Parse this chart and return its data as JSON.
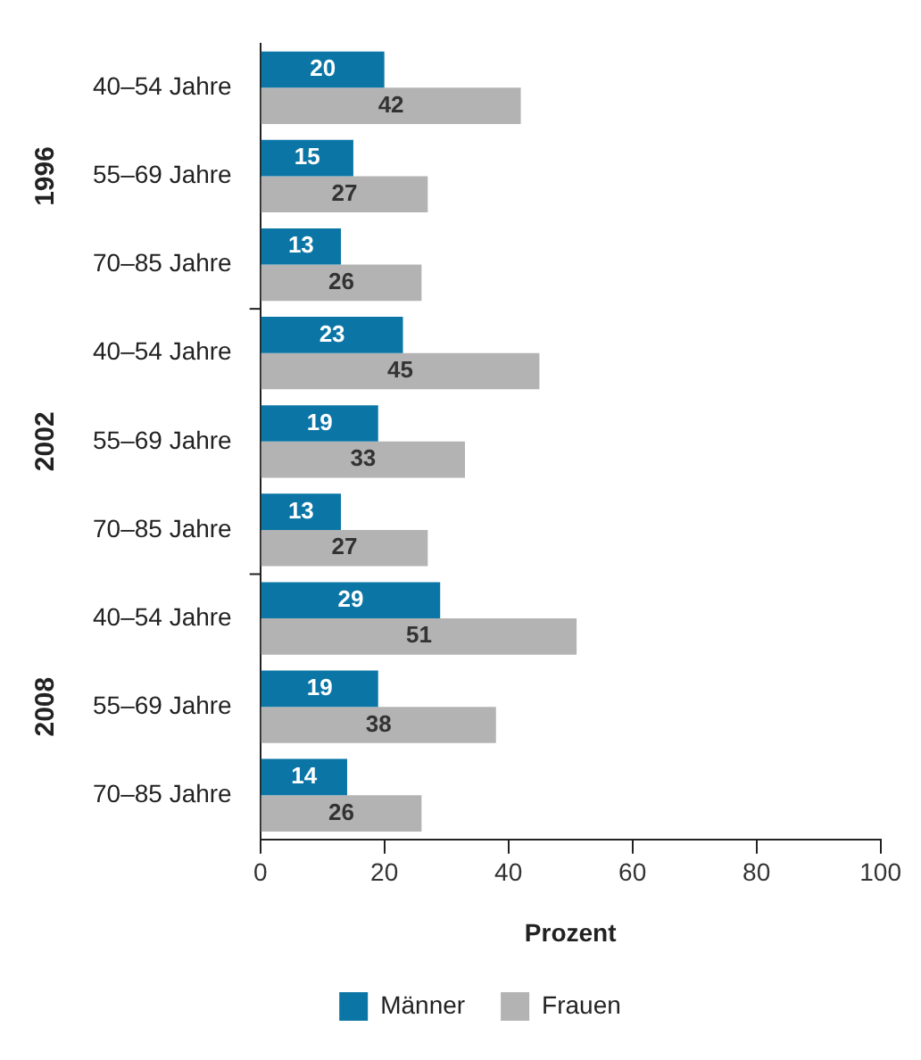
{
  "chart_data": {
    "type": "bar",
    "orientation": "horizontal",
    "xlabel": "Prozent",
    "categories": [
      "40–54 Jahre",
      "55–69 Jahre",
      "70–85 Jahre",
      "40–54 Jahre",
      "55–69 Jahre",
      "70–85 Jahre",
      "40–54 Jahre",
      "55–69 Jahre",
      "70–85 Jahre"
    ],
    "series": [
      {
        "name": "Männer",
        "color": "#0b76a6",
        "values": [
          20,
          15,
          13,
          23,
          19,
          13,
          29,
          19,
          14
        ]
      },
      {
        "name": "Frauen",
        "color": "#b3b3b3",
        "values": [
          42,
          27,
          26,
          45,
          33,
          27,
          51,
          38,
          26
        ]
      }
    ],
    "annotations": [
      "1996",
      "2002",
      "2008"
    ],
    "xlim": [
      0,
      100
    ],
    "xticks": [
      0,
      20,
      40,
      60,
      80,
      100
    ],
    "grid": false,
    "legend": "bottom",
    "data_labels": true
  }
}
